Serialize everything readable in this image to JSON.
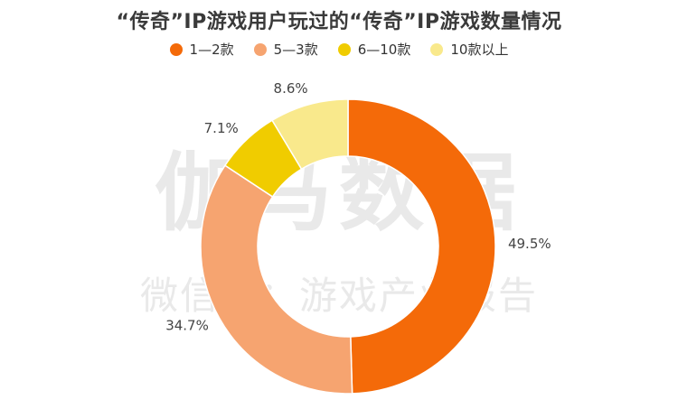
{
  "chart_data": {
    "type": "pie",
    "title": "“传奇”IP游戏用户玩过的“传奇”IP游戏数量情况",
    "categories": [
      "1—2款",
      "5—3款",
      "6—10款",
      "10款以上"
    ],
    "values": [
      49.5,
      34.7,
      7.1,
      8.6
    ],
    "value_labels": [
      "49.5%",
      "34.7%",
      "7.1%",
      "8.6%"
    ],
    "colors": [
      "#F46A09",
      "#F6A470",
      "#F0CC00",
      "#F9E98C"
    ],
    "donut": true,
    "legend": "top"
  },
  "watermark": {
    "main": "伽马数据",
    "sub": "微信号：游戏产业报告"
  }
}
